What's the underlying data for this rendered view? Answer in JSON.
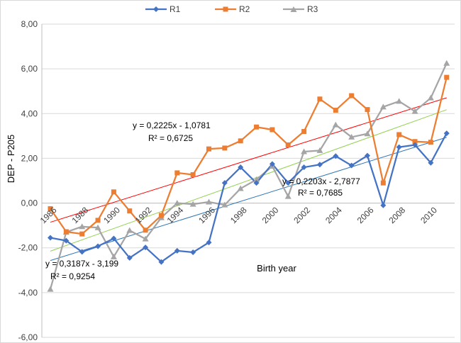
{
  "chart_data": {
    "type": "line",
    "xlabel": "Birth year",
    "ylabel": "DEP - P205",
    "ylim": [
      -6,
      8
    ],
    "xlim": [
      1986,
      2011
    ],
    "y_ticks": [
      "8,00",
      "6,00",
      "4,00",
      "2,00",
      "0,00",
      "-2,00",
      "-4,00",
      "-6,00"
    ],
    "x_tick_labels": [
      "1986",
      "1988",
      "1990",
      "1992",
      "1994",
      "1996",
      "1998",
      "2000",
      "2002",
      "2004",
      "2006",
      "2008",
      "2010"
    ],
    "grid": "horizontal",
    "legend_position": "top",
    "x": [
      1986,
      1987,
      1988,
      1989,
      1990,
      1991,
      1992,
      1993,
      1994,
      1995,
      1996,
      1997,
      1998,
      1999,
      2000,
      2001,
      2002,
      2003,
      2004,
      2005,
      2006,
      2007,
      2008,
      2009,
      2010,
      2011
    ],
    "series": [
      {
        "name": "R1",
        "color": "#4472c4",
        "marker": "diamond",
        "values": [
          -1.55,
          -1.68,
          -2.18,
          -1.93,
          -1.58,
          -2.45,
          -1.98,
          -2.63,
          -2.13,
          -2.2,
          -1.76,
          0.9,
          1.6,
          0.9,
          1.75,
          0.9,
          1.6,
          1.72,
          2.1,
          1.68,
          2.12,
          -0.1,
          2.5,
          2.6,
          1.8,
          3.12
        ]
      },
      {
        "name": "R2",
        "color": "#ed7d31",
        "marker": "square",
        "values": [
          -0.25,
          -1.28,
          -1.38,
          -0.77,
          0.5,
          -0.35,
          -1.21,
          -0.55,
          1.35,
          1.27,
          2.42,
          2.46,
          2.78,
          3.4,
          3.28,
          2.6,
          3.2,
          4.65,
          4.15,
          4.8,
          4.18,
          0.9,
          3.06,
          2.75,
          2.72,
          5.62
        ]
      },
      {
        "name": "R3",
        "color": "#a5a5a5",
        "marker": "triangle",
        "values": [
          -3.85,
          -1.3,
          -1.05,
          -1.1,
          -2.4,
          -1.22,
          -1.6,
          -0.65,
          0.0,
          -0.05,
          0.05,
          -0.08,
          0.65,
          1.05,
          1.65,
          0.3,
          2.3,
          2.35,
          3.5,
          2.95,
          3.1,
          4.3,
          4.55,
          4.1,
          4.7,
          6.25
        ]
      }
    ],
    "trendlines": [
      {
        "series": "R2",
        "color": "#ff0000",
        "slope": 0.2225,
        "intercept": -1.0781,
        "equation": "y = 0,2225x - 1,0781",
        "r2": "R² = 0,6725"
      },
      {
        "series": "R3",
        "color": "#92d050",
        "slope": 0.2528,
        "intercept": -2.4,
        "equation": "",
        "r2": ""
      },
      {
        "series": "R1",
        "color": "#2e75b6",
        "slope": 0.2203,
        "intercept": -2.7877,
        "equation": "y = 0,2203x - 2,7877",
        "r2": "R² = 0,7685"
      }
    ],
    "annotations": [
      {
        "line1": "y = 0,2225x - 1,0781",
        "line2": "R² = 0,6725"
      },
      {
        "line1": "y = 0,2203x - 2,7877",
        "line2": "R² = 0,7685"
      },
      {
        "line1": "y = 0,3187x - 3,199",
        "line2": "R² = 0,9254"
      }
    ]
  }
}
